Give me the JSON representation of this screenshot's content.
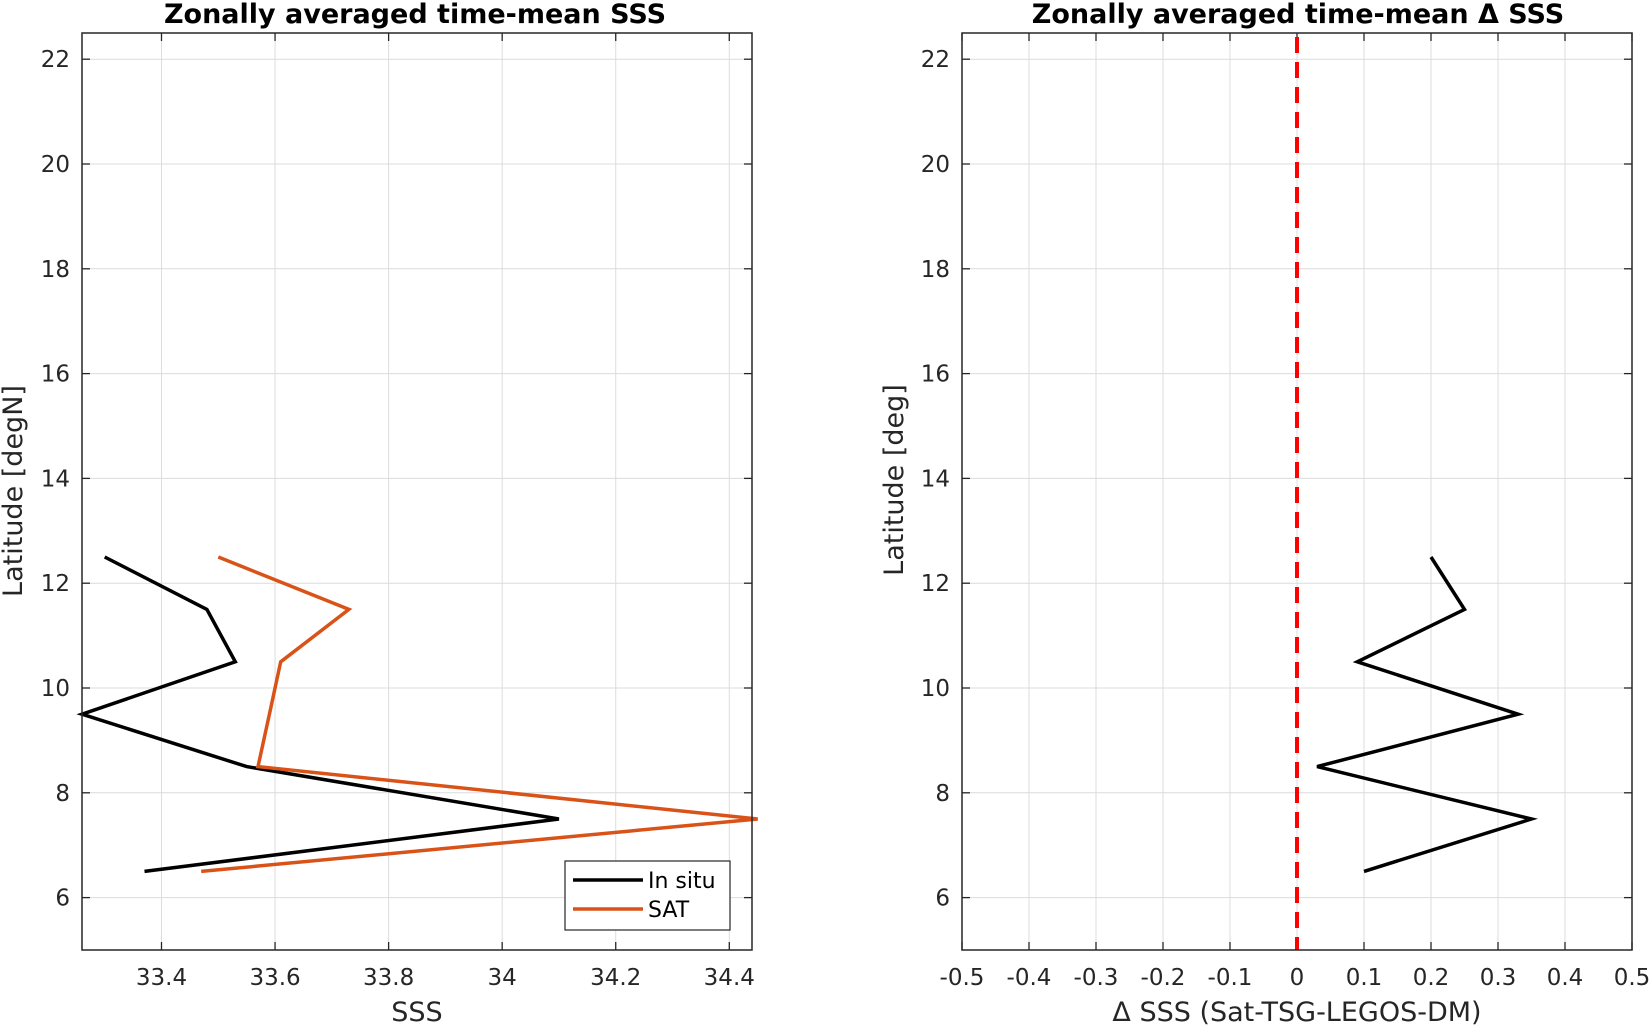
{
  "chart_data": [
    {
      "type": "line",
      "title": "Zonally averaged time-mean SSS",
      "xlabel": "SSS",
      "ylabel": "Latitude [degN]",
      "xlim": [
        33.26,
        34.44
      ],
      "ylim": [
        5,
        22.5
      ],
      "xticks": [
        33.4,
        33.6,
        33.8,
        34.0,
        34.2,
        34.4
      ],
      "xtick_labels": [
        "33.4",
        "33.6",
        "33.8",
        "34",
        "34.2",
        "34.4"
      ],
      "yticks": [
        6,
        8,
        10,
        12,
        14,
        16,
        18,
        20,
        22
      ],
      "ytick_labels": [
        "6",
        "8",
        "10",
        "12",
        "14",
        "16",
        "18",
        "20",
        "22"
      ],
      "grid": true,
      "legend_position": "bottom-right",
      "series": [
        {
          "name": "In situ",
          "color": "#000000",
          "x": [
            33.3,
            33.48,
            33.53,
            33.26,
            33.55,
            34.1,
            33.37
          ],
          "y": [
            12.5,
            11.5,
            10.5,
            9.5,
            8.5,
            7.5,
            6.5
          ]
        },
        {
          "name": "SAT",
          "color": "#D95319",
          "x": [
            33.5,
            33.73,
            33.61,
            33.59,
            33.57,
            34.45,
            33.47
          ],
          "y": [
            12.5,
            11.5,
            10.5,
            9.5,
            8.5,
            7.5,
            6.5
          ]
        }
      ]
    },
    {
      "type": "line",
      "title": "Zonally averaged time-mean Δ SSS",
      "xlabel": "Δ SSS (Sat-TSG-LEGOS-DM)",
      "ylabel": "Latitude [deg]",
      "xlim": [
        -0.5,
        0.5
      ],
      "ylim": [
        5,
        22.5
      ],
      "xticks": [
        -0.5,
        -0.4,
        -0.3,
        -0.2,
        -0.1,
        0,
        0.1,
        0.2,
        0.3,
        0.4,
        0.5
      ],
      "xtick_labels": [
        "-0.5",
        "-0.4",
        "-0.3",
        "-0.2",
        "-0.1",
        "0",
        "0.1",
        "0.2",
        "0.3",
        "0.4",
        "0.5"
      ],
      "yticks": [
        6,
        8,
        10,
        12,
        14,
        16,
        18,
        20,
        22
      ],
      "ytick_labels": [
        "6",
        "8",
        "10",
        "12",
        "14",
        "16",
        "18",
        "20",
        "22"
      ],
      "grid": true,
      "reference_line": {
        "x": 0,
        "color": "#FF0000",
        "style": "dashed"
      },
      "series": [
        {
          "color": "#000000",
          "x": [
            0.2,
            0.25,
            0.09,
            0.33,
            0.03,
            0.35,
            0.1
          ],
          "y": [
            12.5,
            11.5,
            10.5,
            9.5,
            8.5,
            7.5,
            6.5
          ]
        }
      ]
    }
  ]
}
